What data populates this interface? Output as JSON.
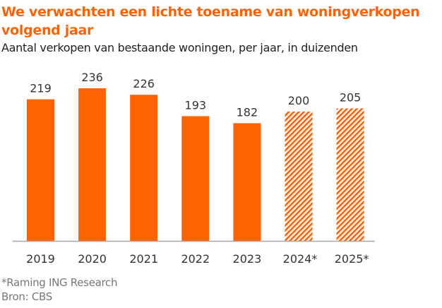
{
  "chart_data": {
    "type": "bar",
    "title": "We verwachten een lichte toename van woningverkopen volgend jaar",
    "title_lines": [
      "We verwachten een lichte toename van woningverkopen",
      "volgend jaar"
    ],
    "subtitle": "Aantal verkopen van bestaande woningen, per jaar, in duizenden",
    "categories": [
      "2019",
      "2020",
      "2021",
      "2022",
      "2023",
      "2024*",
      "2025*"
    ],
    "values": [
      219,
      236,
      226,
      193,
      182,
      200,
      205
    ],
    "value_labels": [
      "219",
      "236",
      "226",
      "193",
      "182",
      "200",
      "205"
    ],
    "forecast": [
      false,
      false,
      false,
      false,
      false,
      true,
      true
    ],
    "xlabel": "",
    "ylabel": "",
    "ylim": [
      0,
      236
    ],
    "grid": false,
    "legend": "none",
    "colors": {
      "bar": "#ff6200",
      "title": "#ff6200",
      "axis": "#a6a6a6",
      "text": "#333333"
    }
  },
  "notes": {
    "raming": "*Raming ING Research",
    "bron": "Bron: CBS"
  }
}
